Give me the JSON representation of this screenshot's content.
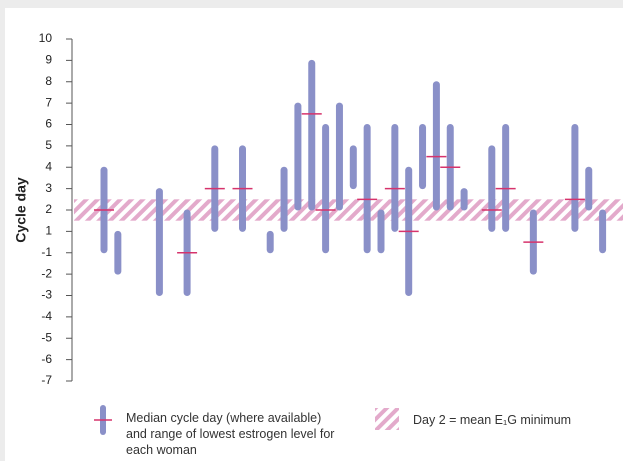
{
  "chart_data": {
    "type": "range",
    "ylabel": "Cycle day",
    "ylim": [
      -7,
      10
    ],
    "yticks": [
      10,
      9,
      8,
      7,
      6,
      5,
      4,
      3,
      2,
      1,
      -1,
      -2,
      -3,
      -4,
      -5,
      -6,
      -7
    ],
    "series": [
      {
        "name": "Median cycle day (where available) and range of lowest estrogen level for each woman",
        "color": "#8a90c8",
        "median_color": "#d6336c",
        "high": [
          4,
          1,
          null,
          null,
          3,
          null,
          2,
          null,
          5,
          null,
          5,
          null,
          1,
          4,
          7,
          9,
          6,
          7,
          5,
          6,
          2,
          6,
          4,
          6,
          8,
          6,
          3,
          null,
          5,
          6,
          null,
          2,
          null,
          null,
          6,
          4,
          2
        ],
        "low": [
          -1,
          -2,
          null,
          null,
          -3,
          null,
          -3,
          null,
          1,
          null,
          1,
          null,
          -1,
          1,
          2,
          2,
          -1,
          2,
          3,
          -1,
          -1,
          1,
          -3,
          3,
          2,
          2,
          2,
          null,
          1,
          1,
          null,
          -2,
          null,
          null,
          1,
          2,
          -1
        ],
        "median": [
          2,
          null,
          null,
          null,
          null,
          null,
          -1,
          null,
          3,
          null,
          3,
          null,
          null,
          null,
          null,
          6.5,
          2,
          null,
          null,
          2.5,
          null,
          3,
          1,
          null,
          4.5,
          4,
          null,
          null,
          2,
          3,
          null,
          0,
          null,
          null,
          2.5,
          null,
          null
        ]
      }
    ],
    "band": {
      "name": "Day 2 = mean E₁G minimum",
      "range": [
        1.5,
        2.5
      ],
      "color": "#e3aacb"
    }
  }
}
